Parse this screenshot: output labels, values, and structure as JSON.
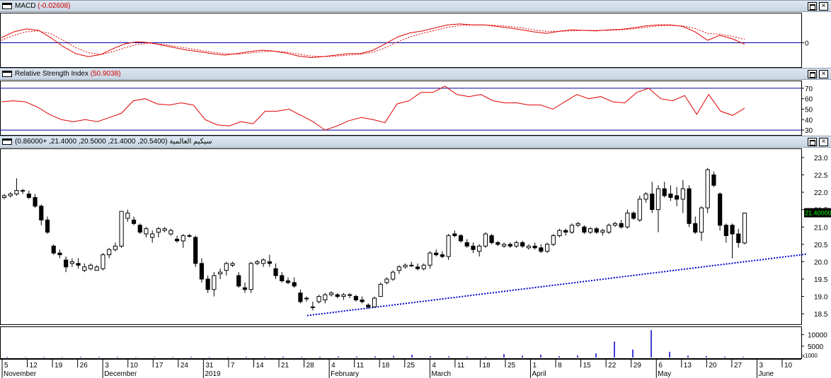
{
  "macd": {
    "title": "MACD",
    "value": "(-0.02608)",
    "zero_tick": "0"
  },
  "rsi": {
    "title": "Relative Strength Index",
    "value": "(50.9038)",
    "ticks": [
      "70",
      "60",
      "50",
      "40",
      "30"
    ]
  },
  "price": {
    "title": "سيكيم العالمية",
    "ohlc": "(20.5400, 21.4000, 20.5000, 21.4000, +0.86000)",
    "last_price": "21.40000",
    "ticks": [
      "23.0",
      "22.5",
      "22.0",
      "21.5",
      "21.0",
      "20.5",
      "20.0",
      "19.5",
      "19.0",
      "18.5"
    ]
  },
  "volume": {
    "ticks": [
      "10000",
      "5000"
    ],
    "unit": "x1000"
  },
  "time_axis": {
    "day_ticks": [
      "5",
      "12",
      "19",
      "26",
      "3",
      "10",
      "17",
      "24",
      "31",
      "7",
      "14",
      "21",
      "28",
      "4",
      "11",
      "18",
      "25",
      "4",
      "11",
      "18",
      "25",
      "1",
      "8",
      "15",
      "22",
      "29",
      "6",
      "13",
      "20",
      "27",
      "3",
      "10"
    ],
    "month_labels": [
      "November",
      "December",
      "2019",
      "February",
      "March",
      "April",
      "May",
      "June"
    ]
  },
  "colors": {
    "up": "#ffffff",
    "down": "#000000",
    "macd_line": "#e00000",
    "reference_line": "#0000a0",
    "trendline": "#0000cc",
    "volume_bar": "#0000cc",
    "last_price_bg": "#000000",
    "last_price_text": "#00ff00"
  },
  "chart_data": [
    {
      "type": "line",
      "title": "MACD",
      "series": [
        {
          "name": "MACD",
          "values": [
            0.1,
            0.22,
            0.28,
            0.25,
            0.1,
            -0.08,
            -0.22,
            -0.28,
            -0.24,
            -0.12,
            -0.02,
            0.02,
            0.0,
            -0.05,
            -0.1,
            -0.15,
            -0.18,
            -0.22,
            -0.25,
            -0.22,
            -0.18,
            -0.15,
            -0.17,
            -0.21,
            -0.27,
            -0.3,
            -0.28,
            -0.25,
            -0.22,
            -0.22,
            -0.15,
            -0.02,
            0.12,
            0.2,
            0.24,
            0.3,
            0.36,
            0.38,
            0.36,
            0.36,
            0.33,
            0.3,
            0.26,
            0.22,
            0.19,
            0.23,
            0.26,
            0.25,
            0.24,
            0.26,
            0.27,
            0.3,
            0.34,
            0.36,
            0.36,
            0.33,
            0.22,
            0.05,
            0.15,
            0.08,
            -0.03
          ]
        },
        {
          "name": "Signal",
          "values": [
            0.05,
            0.15,
            0.22,
            0.24,
            0.18,
            0.05,
            -0.1,
            -0.2,
            -0.24,
            -0.18,
            -0.1,
            -0.03,
            -0.01,
            -0.03,
            -0.07,
            -0.11,
            -0.15,
            -0.19,
            -0.22,
            -0.23,
            -0.21,
            -0.18,
            -0.17,
            -0.19,
            -0.23,
            -0.27,
            -0.28,
            -0.27,
            -0.25,
            -0.23,
            -0.19,
            -0.1,
            0.02,
            0.12,
            0.19,
            0.25,
            0.31,
            0.35,
            0.36,
            0.36,
            0.35,
            0.33,
            0.3,
            0.26,
            0.23,
            0.23,
            0.24,
            0.25,
            0.25,
            0.25,
            0.26,
            0.28,
            0.31,
            0.34,
            0.35,
            0.34,
            0.29,
            0.19,
            0.17,
            0.13,
            0.07
          ]
        }
      ],
      "ylim": [
        -0.45,
        0.55
      ]
    },
    {
      "type": "line",
      "title": "Relative Strength Index",
      "series": [
        {
          "name": "RSI",
          "values": [
            57,
            58,
            57,
            52,
            45,
            40,
            38,
            40,
            38,
            42,
            46,
            58,
            60,
            55,
            54,
            56,
            54,
            40,
            35,
            34,
            38,
            36,
            48,
            48,
            50,
            44,
            38,
            30,
            34,
            39,
            42,
            40,
            37,
            55,
            58,
            66,
            66,
            72,
            64,
            62,
            64,
            58,
            56,
            56,
            54,
            54,
            50,
            57,
            64,
            60,
            62,
            57,
            56,
            66,
            70,
            60,
            58,
            63,
            45,
            64,
            48,
            44,
            50.9
          ]
        },
        {
          "name": "Upper",
          "values": [
            70
          ]
        },
        {
          "name": "Lower",
          "values": [
            30
          ]
        }
      ],
      "ylim": [
        26,
        76
      ]
    },
    {
      "type": "candlestick",
      "title": "سيكيم العالمية",
      "candles": [
        [
          21.85,
          21.95,
          21.8,
          21.9
        ],
        [
          21.9,
          22.0,
          21.85,
          21.95
        ],
        [
          21.95,
          22.4,
          21.9,
          22.05
        ],
        [
          22.05,
          22.1,
          21.95,
          22.05
        ],
        [
          21.95,
          22.05,
          21.8,
          21.85
        ],
        [
          21.85,
          21.95,
          21.55,
          21.6
        ],
        [
          21.6,
          21.65,
          21.05,
          21.2
        ],
        [
          21.2,
          21.3,
          20.8,
          20.85
        ],
        [
          20.45,
          20.5,
          20.2,
          20.25
        ],
        [
          20.25,
          20.35,
          20.1,
          20.2
        ],
        [
          20.05,
          20.15,
          19.7,
          19.85
        ],
        [
          19.95,
          20.1,
          19.85,
          20.0
        ],
        [
          19.95,
          20.1,
          19.8,
          19.9
        ],
        [
          19.75,
          19.95,
          19.7,
          19.85
        ],
        [
          19.8,
          19.95,
          19.75,
          19.9
        ],
        [
          19.75,
          19.9,
          19.75,
          19.85
        ],
        [
          19.8,
          20.25,
          19.75,
          20.2
        ],
        [
          20.2,
          20.4,
          20.1,
          20.35
        ],
        [
          20.35,
          20.55,
          20.3,
          20.45
        ],
        [
          20.45,
          21.45,
          20.4,
          21.45
        ],
        [
          21.25,
          21.5,
          21.15,
          21.4
        ],
        [
          21.2,
          21.3,
          21.05,
          21.1
        ],
        [
          21.05,
          21.1,
          20.8,
          20.85
        ],
        [
          20.8,
          21.0,
          20.7,
          20.95
        ],
        [
          20.7,
          20.9,
          20.55,
          20.8
        ],
        [
          20.85,
          21.0,
          20.7,
          20.95
        ],
        [
          20.9,
          21.0,
          20.85,
          20.95
        ],
        [
          20.8,
          20.95,
          20.75,
          20.9
        ],
        [
          20.65,
          20.75,
          20.55,
          20.6
        ],
        [
          20.6,
          20.8,
          20.4,
          20.75
        ],
        [
          20.75,
          20.8,
          20.7,
          20.75
        ],
        [
          20.7,
          20.75,
          19.85,
          19.95
        ],
        [
          19.95,
          20.1,
          19.4,
          19.5
        ],
        [
          19.5,
          19.6,
          19.1,
          19.2
        ],
        [
          19.2,
          19.7,
          19.0,
          19.6
        ],
        [
          19.65,
          19.8,
          19.5,
          19.7
        ],
        [
          19.75,
          20.0,
          19.6,
          19.95
        ],
        [
          19.9,
          20.0,
          19.85,
          19.95
        ],
        [
          19.6,
          19.7,
          19.25,
          19.3
        ],
        [
          19.25,
          19.4,
          19.1,
          19.2
        ],
        [
          19.2,
          20.0,
          19.1,
          19.95
        ],
        [
          19.95,
          20.05,
          19.9,
          20.0
        ],
        [
          19.95,
          20.1,
          19.85,
          20.05
        ],
        [
          20.0,
          20.2,
          19.85,
          19.95
        ],
        [
          19.8,
          19.95,
          19.5,
          19.6
        ],
        [
          19.6,
          19.7,
          19.4,
          19.45
        ],
        [
          19.45,
          19.55,
          19.35,
          19.4
        ],
        [
          19.4,
          19.55,
          19.25,
          19.3
        ],
        [
          19.1,
          19.2,
          18.8,
          18.85
        ],
        [
          18.95,
          19.0,
          18.85,
          18.95
        ],
        [
          18.7,
          18.85,
          18.6,
          18.7
        ],
        [
          18.85,
          19.05,
          18.8,
          19.0
        ],
        [
          18.9,
          19.1,
          18.8,
          19.05
        ],
        [
          19.05,
          19.15,
          19.0,
          19.1
        ],
        [
          19.05,
          19.1,
          18.95,
          19.0
        ],
        [
          19.0,
          19.1,
          18.9,
          19.05
        ],
        [
          19.05,
          19.1,
          18.95,
          19.05
        ],
        [
          19.0,
          19.05,
          18.85,
          18.9
        ],
        [
          18.9,
          19.0,
          18.8,
          18.85
        ],
        [
          18.75,
          18.8,
          18.65,
          18.7
        ],
        [
          18.7,
          19.0,
          18.7,
          18.95
        ],
        [
          19.0,
          19.4,
          19.0,
          19.35
        ],
        [
          19.4,
          19.55,
          19.35,
          19.5
        ],
        [
          19.5,
          19.75,
          19.45,
          19.7
        ],
        [
          19.75,
          19.9,
          19.65,
          19.85
        ],
        [
          19.85,
          19.95,
          19.8,
          19.9
        ],
        [
          19.9,
          20.0,
          19.85,
          19.9
        ],
        [
          19.85,
          19.95,
          19.75,
          19.8
        ],
        [
          19.8,
          19.95,
          19.75,
          19.9
        ],
        [
          19.9,
          20.3,
          19.8,
          20.25
        ],
        [
          20.25,
          20.35,
          20.15,
          20.2
        ],
        [
          20.2,
          20.3,
          20.1,
          20.15
        ],
        [
          20.15,
          20.8,
          20.05,
          20.75
        ],
        [
          20.8,
          20.9,
          20.7,
          20.75
        ],
        [
          20.75,
          20.8,
          20.55,
          20.6
        ],
        [
          20.55,
          20.65,
          20.4,
          20.45
        ],
        [
          20.45,
          20.55,
          20.25,
          20.35
        ],
        [
          20.3,
          20.5,
          20.15,
          20.45
        ],
        [
          20.45,
          20.85,
          20.4,
          20.8
        ],
        [
          20.75,
          20.8,
          20.5,
          20.55
        ],
        [
          20.55,
          20.6,
          20.45,
          20.5
        ],
        [
          20.45,
          20.55,
          20.4,
          20.5
        ],
        [
          20.5,
          20.55,
          20.4,
          20.45
        ],
        [
          20.45,
          20.6,
          20.4,
          20.55
        ],
        [
          20.55,
          20.6,
          20.4,
          20.45
        ],
        [
          20.4,
          20.5,
          20.35,
          20.45
        ],
        [
          20.45,
          20.55,
          20.35,
          20.4
        ],
        [
          20.4,
          20.5,
          20.25,
          20.3
        ],
        [
          20.3,
          20.55,
          20.25,
          20.5
        ],
        [
          20.5,
          20.8,
          20.45,
          20.75
        ],
        [
          20.75,
          20.95,
          20.7,
          20.9
        ],
        [
          20.9,
          20.95,
          20.75,
          20.85
        ],
        [
          20.85,
          21.1,
          20.8,
          21.05
        ],
        [
          21.05,
          21.15,
          21.0,
          21.1
        ],
        [
          21.0,
          21.05,
          20.8,
          20.85
        ],
        [
          20.85,
          21.0,
          20.8,
          20.95
        ],
        [
          20.95,
          21.0,
          20.8,
          20.85
        ],
        [
          20.85,
          20.95,
          20.75,
          20.9
        ],
        [
          20.85,
          21.1,
          20.8,
          21.05
        ],
        [
          21.05,
          21.15,
          21.0,
          21.1
        ],
        [
          21.1,
          21.2,
          20.95,
          21.0
        ],
        [
          21.0,
          21.5,
          20.95,
          21.4
        ],
        [
          21.4,
          21.45,
          21.2,
          21.25
        ],
        [
          21.2,
          21.9,
          21.15,
          21.8
        ],
        [
          21.8,
          22.0,
          21.7,
          21.95
        ],
        [
          21.95,
          22.3,
          21.4,
          21.5
        ],
        [
          21.5,
          22.2,
          20.85,
          22.1
        ],
        [
          22.1,
          22.3,
          21.85,
          21.9
        ],
        [
          21.95,
          22.2,
          21.75,
          21.85
        ],
        [
          21.9,
          22.15,
          21.6,
          21.8
        ],
        [
          21.8,
          22.35,
          21.4,
          22.1
        ],
        [
          22.1,
          22.2,
          21.0,
          21.1
        ],
        [
          21.1,
          21.3,
          20.8,
          20.85
        ],
        [
          20.85,
          21.6,
          20.6,
          21.55
        ],
        [
          21.55,
          22.7,
          21.4,
          22.65
        ],
        [
          22.5,
          22.6,
          22.15,
          22.2
        ],
        [
          21.95,
          22.0,
          20.9,
          21.05
        ],
        [
          21.05,
          21.1,
          20.55,
          20.75
        ],
        [
          21.05,
          21.1,
          20.1,
          20.8
        ],
        [
          20.8,
          20.95,
          20.4,
          20.55
        ],
        [
          20.54,
          21.4,
          20.5,
          21.4
        ]
      ],
      "ylim": [
        18.3,
        23.1
      ],
      "trendline": {
        "from": [
          434,
          18.45
        ],
        "to": [
          1140,
          20.22
        ]
      }
    },
    {
      "type": "bar",
      "title": "Volume",
      "values": [
        300,
        200,
        250,
        200,
        300,
        250,
        300,
        200,
        150,
        200,
        300,
        250,
        200,
        300,
        250,
        400,
        300,
        350,
        450,
        400,
        500,
        700,
        1200,
        600,
        500,
        400,
        300,
        1500,
        800,
        1200,
        600,
        900,
        1800,
        7000,
        3500,
        12000,
        2500,
        800,
        600,
        400,
        300
      ],
      "ylim": [
        0,
        13000
      ],
      "unit": "x1000"
    }
  ]
}
